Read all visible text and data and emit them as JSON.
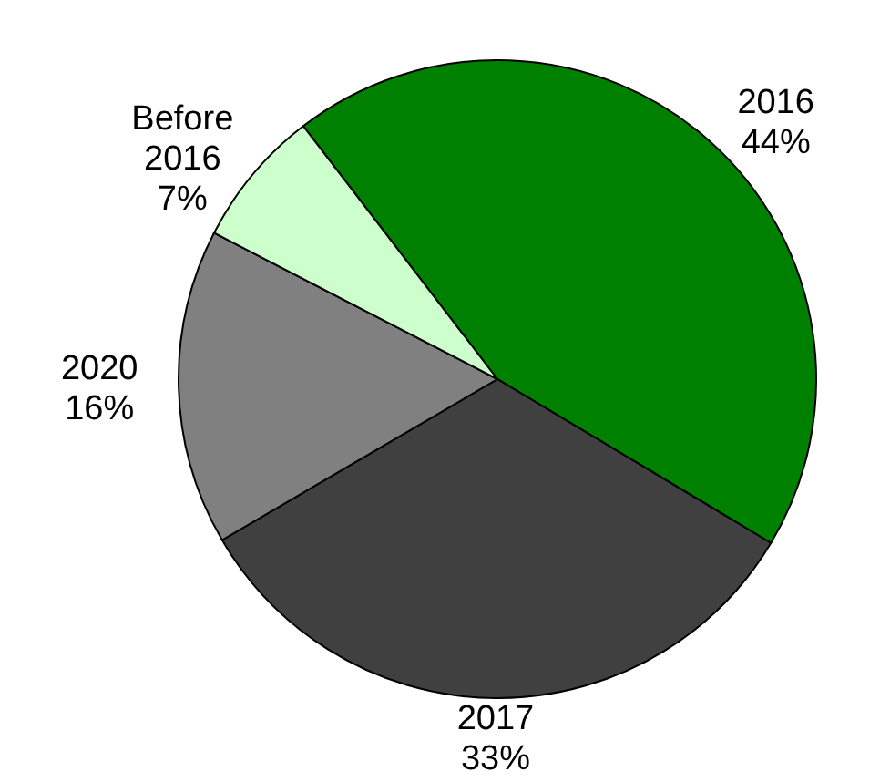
{
  "chart_data": {
    "type": "pie",
    "categories": [
      "2016",
      "2017",
      "2020",
      "Before 2016"
    ],
    "values": [
      44,
      33,
      16,
      7
    ],
    "colors": [
      "#008000",
      "#404040",
      "#808080",
      "#ccffcc"
    ],
    "value_labels": [
      "44%",
      "33%",
      "16%",
      "7%"
    ]
  }
}
